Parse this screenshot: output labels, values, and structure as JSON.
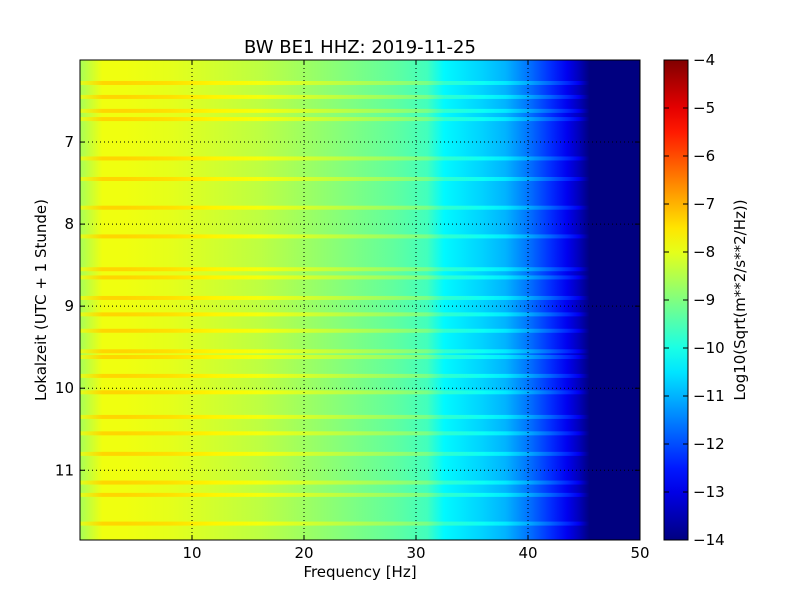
{
  "chart_data": {
    "type": "heatmap",
    "title": "BW BE1 HHZ: 2019-11-25",
    "xlabel": "Frequency [Hz]",
    "ylabel": "Lokalzeit (UTC + 1 Stunde)",
    "xlim": [
      0,
      50
    ],
    "ylim": [
      11.85,
      6.0
    ],
    "y_inverted": true,
    "x_ticks": [
      10,
      20,
      30,
      40,
      50
    ],
    "y_ticks": [
      7,
      8,
      9,
      10,
      11
    ],
    "grid": true,
    "colormap": "jet",
    "colorbar": {
      "label": "Log10(Sqrt(m**2/s**2/Hz))",
      "range": [
        -14,
        -4
      ],
      "ticks": [
        -4,
        -5,
        -6,
        -7,
        -8,
        -9,
        -10,
        -11,
        -12,
        -13,
        -14
      ]
    },
    "spectrum_profile": {
      "frequency_hz": [
        0,
        2,
        4,
        8,
        12,
        16,
        20,
        24,
        28,
        31,
        32.5,
        36,
        38,
        40,
        42,
        43.5,
        44.5,
        45.5,
        50
      ],
      "log10_amplitude": [
        -8.6,
        -7.9,
        -7.9,
        -8.0,
        -8.2,
        -8.4,
        -8.7,
        -9.0,
        -9.3,
        -9.6,
        -10.3,
        -10.7,
        -11.0,
        -11.6,
        -12.3,
        -12.9,
        -13.4,
        -14,
        -14
      ]
    },
    "bright_time_bands_hours": [
      6.28,
      6.45,
      6.62,
      6.72,
      7.2,
      7.45,
      7.8,
      8.15,
      8.55,
      8.65,
      8.9,
      9.1,
      9.3,
      9.55,
      9.62,
      9.85,
      10.05,
      10.35,
      10.55,
      10.8,
      11.15,
      11.3,
      11.65
    ]
  }
}
